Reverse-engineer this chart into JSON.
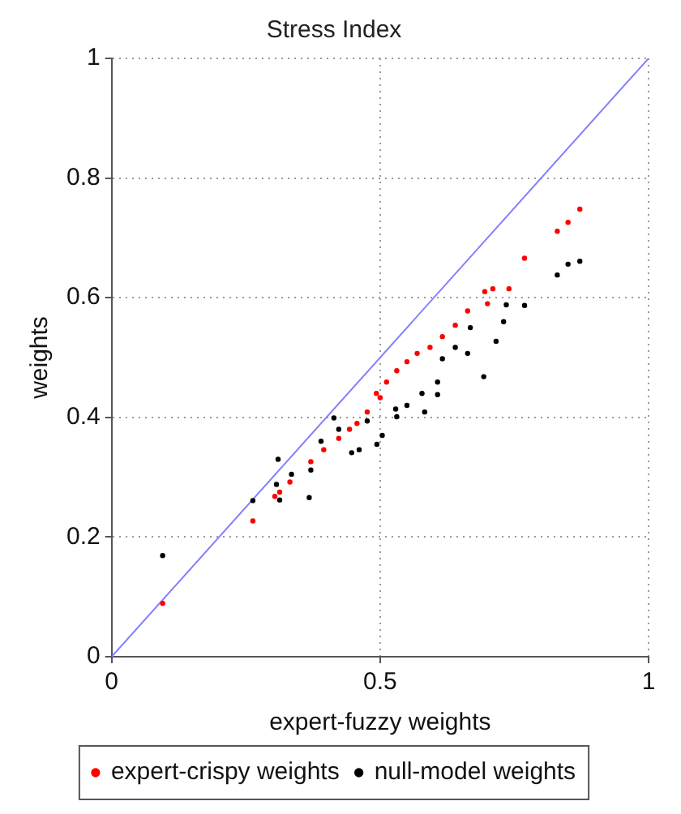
{
  "chart_data": {
    "type": "scatter",
    "title": "Stress Index",
    "xlabel": "expert-fuzzy weights",
    "ylabel": "weights",
    "xlim": [
      0,
      1
    ],
    "ylim": [
      0,
      1
    ],
    "xticks": [
      0,
      0.5,
      1
    ],
    "yticks": [
      0,
      0.2,
      0.4,
      0.6,
      0.8,
      1
    ],
    "grid": true,
    "legend": "bottom",
    "marker": "circle",
    "series": [
      {
        "name": "expert-crispy weights",
        "color": "#ff0000",
        "x": [
          0.095,
          0.263,
          0.304,
          0.313,
          0.332,
          0.371,
          0.395,
          0.423,
          0.443,
          0.457,
          0.476,
          0.493,
          0.5,
          0.512,
          0.531,
          0.55,
          0.569,
          0.593,
          0.616,
          0.64,
          0.663,
          0.695,
          0.7,
          0.71,
          0.74,
          0.769,
          0.83,
          0.85,
          0.872
        ],
        "values": [
          0.089,
          0.227,
          0.268,
          0.275,
          0.292,
          0.326,
          0.346,
          0.365,
          0.38,
          0.39,
          0.409,
          0.44,
          0.433,
          0.459,
          0.478,
          0.493,
          0.507,
          0.517,
          0.535,
          0.554,
          0.578,
          0.61,
          0.59,
          0.615,
          0.615,
          0.666,
          0.711,
          0.726,
          0.748
        ]
      },
      {
        "name": "null-model weights",
        "color": "#000000",
        "x": [
          0.095,
          0.263,
          0.307,
          0.31,
          0.313,
          0.335,
          0.368,
          0.371,
          0.39,
          0.414,
          0.423,
          0.447,
          0.461,
          0.476,
          0.494,
          0.504,
          0.529,
          0.531,
          0.55,
          0.578,
          0.583,
          0.607,
          0.607,
          0.616,
          0.64,
          0.663,
          0.668,
          0.693,
          0.716,
          0.73,
          0.735,
          0.769,
          0.83,
          0.85,
          0.872
        ],
        "values": [
          0.169,
          0.261,
          0.288,
          0.33,
          0.262,
          0.305,
          0.266,
          0.312,
          0.36,
          0.399,
          0.38,
          0.341,
          0.346,
          0.394,
          0.355,
          0.37,
          0.414,
          0.401,
          0.42,
          0.44,
          0.409,
          0.438,
          0.459,
          0.498,
          0.517,
          0.507,
          0.55,
          0.468,
          0.527,
          0.56,
          0.588,
          0.587,
          0.638,
          0.656,
          0.661
        ]
      },
      {
        "type": "line",
        "color": "#8080ff",
        "marker": "none",
        "line_style": "solid",
        "x": [
          0,
          1
        ],
        "values": [
          0,
          1
        ]
      }
    ]
  }
}
